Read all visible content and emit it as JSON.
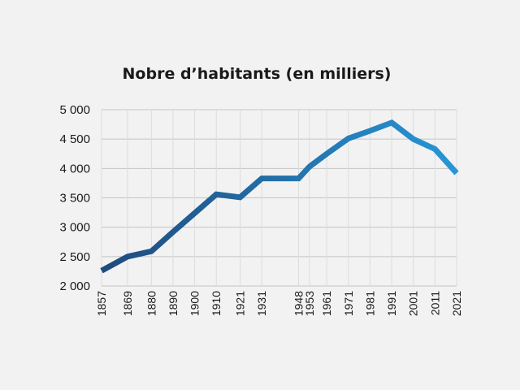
{
  "chart_data": {
    "type": "line",
    "title": "Nobre d’habitants (en milliers)",
    "xlabel": "",
    "ylabel": "",
    "x": [
      1857,
      1869,
      1880,
      1890,
      1900,
      1910,
      1921,
      1931,
      1948,
      1953,
      1961,
      1971,
      1981,
      1991,
      2001,
      2011,
      2021
    ],
    "series": [
      {
        "values": [
          2260,
          2500,
          2590,
          2920,
          3240,
          3560,
          3510,
          3830,
          3830,
          4030,
          4250,
          4510,
          4640,
          4780,
          4500,
          4330,
          3920
        ]
      }
    ],
    "ylim": [
      2000,
      5000
    ],
    "yticks": [
      2000,
      2500,
      3000,
      3500,
      4000,
      4500,
      5000
    ],
    "ytick_labels": [
      "2 000",
      "2 500",
      "3 000",
      "3 500",
      "4 000",
      "4 500",
      "5 000"
    ],
    "grid": true,
    "legend": "none",
    "colors": {
      "start": "#1f4a7d",
      "end": "#2796d6",
      "grid": "#c4c4c4",
      "background": "#f2f2f2"
    }
  }
}
